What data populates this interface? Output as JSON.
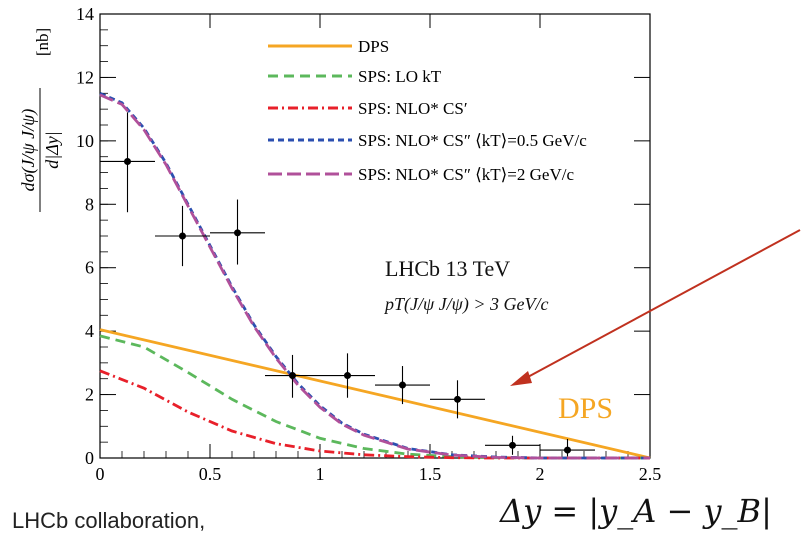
{
  "caption": "LHCb collaboration,",
  "formula": "Δy = |y_A − y_B|",
  "chart_data": {
    "type": "line",
    "ylabel_top": "dσ(J/ψ J/ψ)",
    "ylabel_bottom": "d|Δy|",
    "yunit": "[nb]",
    "xlim": [
      0,
      2.5
    ],
    "ylim": [
      0,
      14
    ],
    "xticks": [
      0,
      0.5,
      1,
      1.5,
      2,
      2.5
    ],
    "xtick_labels": [
      "0",
      "0.5",
      "1",
      "1.5",
      "2",
      "2.5"
    ],
    "yticks": [
      0,
      2,
      4,
      6,
      8,
      10,
      12,
      14
    ],
    "ytick_labels": [
      "0",
      "2",
      "4",
      "6",
      "8",
      "10",
      "12",
      "14"
    ],
    "annotation_title": "LHCb 13 TeV",
    "annotation_cut": "pT(J/ψ J/ψ) > 3 GeV/c",
    "arrow_label": "DPS",
    "legend_position": "top-right",
    "series": [
      {
        "name": "DPS",
        "color": "#f5a623",
        "dash": "",
        "x": [
          0,
          2.5
        ],
        "y": [
          4.05,
          0.0
        ]
      },
      {
        "name": "SPS: LO kT",
        "color": "#5cb85c",
        "dash": "10,6",
        "x": [
          0,
          0.2,
          0.4,
          0.6,
          0.8,
          1.0,
          1.2,
          1.4,
          1.6,
          1.8,
          2.0,
          2.2,
          2.5
        ],
        "y": [
          3.85,
          3.5,
          2.7,
          1.85,
          1.15,
          0.62,
          0.3,
          0.12,
          0.04,
          0.01,
          0.0,
          0.0,
          0.0
        ]
      },
      {
        "name": "SPS: NLO* CS′",
        "color": "#e8202a",
        "dash": "10,4,2,4",
        "x": [
          0,
          0.2,
          0.4,
          0.6,
          0.8,
          1.0,
          1.2,
          1.4,
          1.6,
          1.8,
          2.0,
          2.2,
          2.5
        ],
        "y": [
          2.75,
          2.2,
          1.45,
          0.85,
          0.45,
          0.22,
          0.1,
          0.04,
          0.01,
          0.0,
          0.0,
          0.0,
          0.0
        ]
      },
      {
        "name": "SPS: NLO* CS″ ⟨kT⟩=0.5 GeV/c",
        "color": "#2b4fb0",
        "dash": "6,4",
        "x": [
          0,
          0.1,
          0.2,
          0.3,
          0.4,
          0.5,
          0.6,
          0.7,
          0.8,
          0.9,
          1.0,
          1.1,
          1.2,
          1.4,
          1.6,
          1.8,
          2.0,
          2.2,
          2.5
        ],
        "y": [
          11.5,
          11.2,
          10.4,
          9.3,
          8.0,
          6.7,
          5.4,
          4.2,
          3.2,
          2.35,
          1.65,
          1.1,
          0.75,
          0.3,
          0.1,
          0.03,
          0.0,
          0.0,
          0.0
        ]
      },
      {
        "name": "SPS: NLO* CS″ ⟨kT⟩=2 GeV/c",
        "color": "#b0509a",
        "dash": "14,5",
        "x": [
          0,
          0.1,
          0.2,
          0.3,
          0.4,
          0.5,
          0.6,
          0.7,
          0.8,
          0.9,
          1.0,
          1.1,
          1.2,
          1.4,
          1.6,
          1.8,
          2.0,
          2.2,
          2.5
        ],
        "y": [
          11.45,
          11.15,
          10.35,
          9.25,
          7.95,
          6.65,
          5.35,
          4.15,
          3.15,
          2.3,
          1.6,
          1.07,
          0.72,
          0.28,
          0.09,
          0.02,
          0.0,
          0.0,
          0.0
        ]
      }
    ],
    "data_points": {
      "x": [
        0.125,
        0.375,
        0.625,
        0.875,
        1.125,
        1.375,
        1.625,
        1.875,
        2.125
      ],
      "y": [
        9.35,
        7.0,
        7.1,
        2.6,
        2.6,
        2.3,
        1.85,
        0.4,
        0.25
      ],
      "xerr": [
        0.125,
        0.125,
        0.125,
        0.125,
        0.125,
        0.125,
        0.125,
        0.125,
        0.125
      ],
      "yerr_low": [
        1.6,
        0.95,
        1.0,
        0.7,
        0.7,
        0.6,
        0.6,
        0.3,
        0.2
      ],
      "yerr_high": [
        1.55,
        0.95,
        1.05,
        0.65,
        0.7,
        0.6,
        0.6,
        0.3,
        0.35
      ]
    }
  }
}
